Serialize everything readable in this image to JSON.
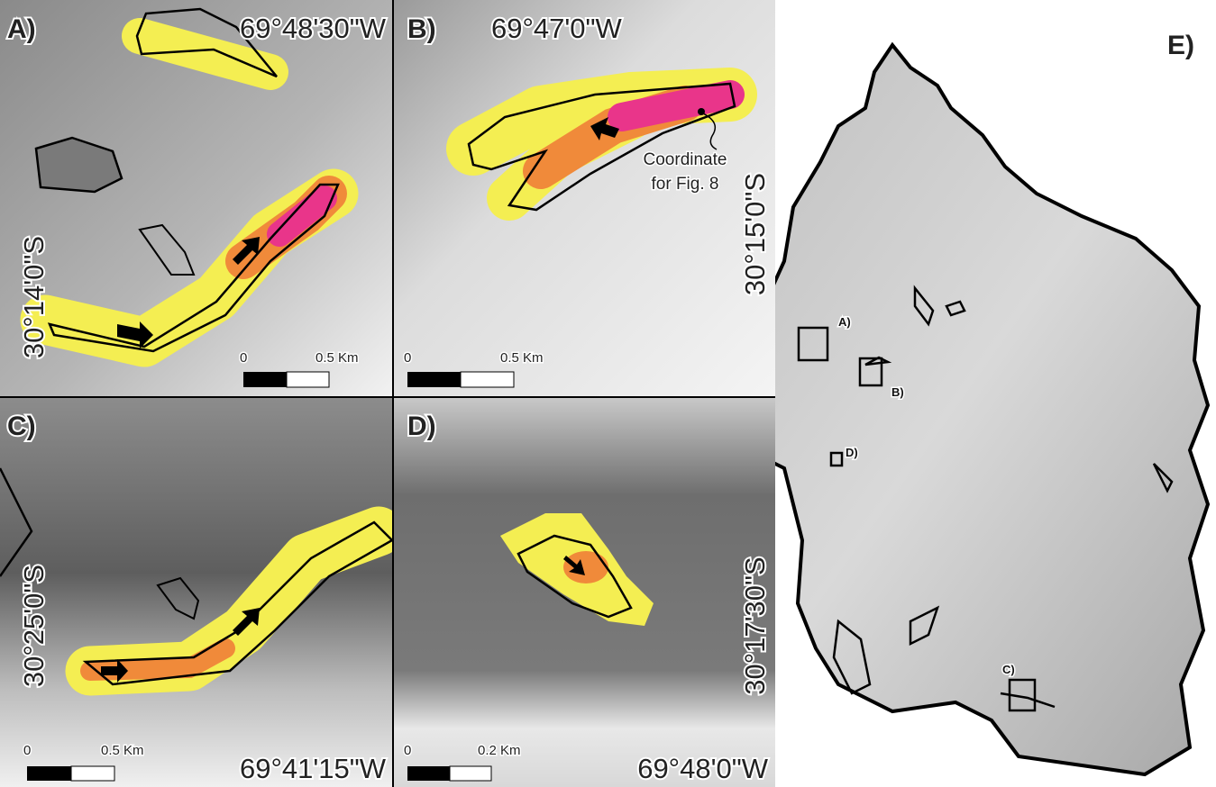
{
  "panels": [
    {
      "label": "A)",
      "longitude": "69°48'30\"W",
      "latitude": "30°14'0\"S",
      "scale_start": "0",
      "scale_end": "0.5 Km"
    },
    {
      "label": "B)",
      "longitude": "69°47'0\"W",
      "latitude": "30°15'0\"S",
      "scale_start": "0",
      "scale_end": "0.5 Km",
      "annotation": [
        "Coordinate",
        "for Fig. 8"
      ]
    },
    {
      "label": "C)",
      "longitude": "69°41'15\"W",
      "latitude": "30°25'0\"S",
      "scale_start": "0",
      "scale_end": "0.5 Km"
    },
    {
      "label": "D)",
      "longitude": "69°48'0\"W",
      "latitude": "30°17'30\"S",
      "scale_start": "0",
      "scale_end": "0.2 Km"
    }
  ],
  "overview": {
    "label": "E)",
    "boxes": [
      "A)",
      "B)",
      "C)",
      "D)"
    ]
  }
}
